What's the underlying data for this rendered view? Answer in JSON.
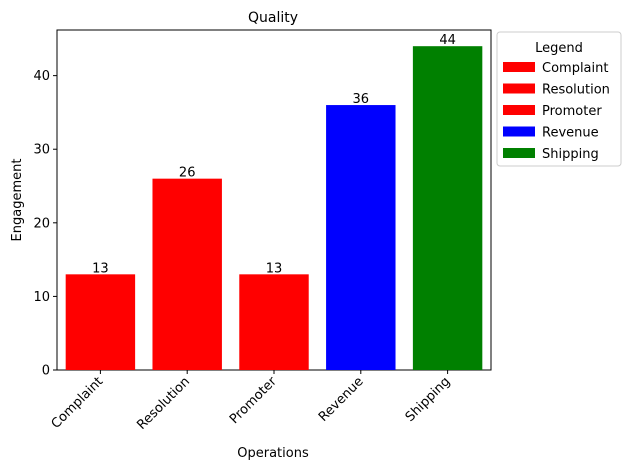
{
  "chart_data": {
    "type": "bar",
    "title": "Quality",
    "xlabel": "Operations",
    "ylabel": "Engagement",
    "categories": [
      "Complaint",
      "Resolution",
      "Promoter",
      "Revenue",
      "Shipping"
    ],
    "values": [
      13,
      26,
      13,
      36,
      44
    ],
    "colors": [
      "#ff0000",
      "#ff0000",
      "#ff0000",
      "#0000ff",
      "#008000"
    ],
    "ylim": [
      0,
      46.2
    ],
    "yticks": [
      0,
      10,
      20,
      30,
      40
    ],
    "grid": false,
    "legend": {
      "title": "Legend",
      "placement": "outside-top-right",
      "entries": [
        {
          "label": "Complaint",
          "color": "#ff0000"
        },
        {
          "label": "Resolution",
          "color": "#ff0000"
        },
        {
          "label": "Promoter",
          "color": "#ff0000"
        },
        {
          "label": "Revenue",
          "color": "#0000ff"
        },
        {
          "label": "Shipping",
          "color": "#008000"
        }
      ]
    }
  }
}
